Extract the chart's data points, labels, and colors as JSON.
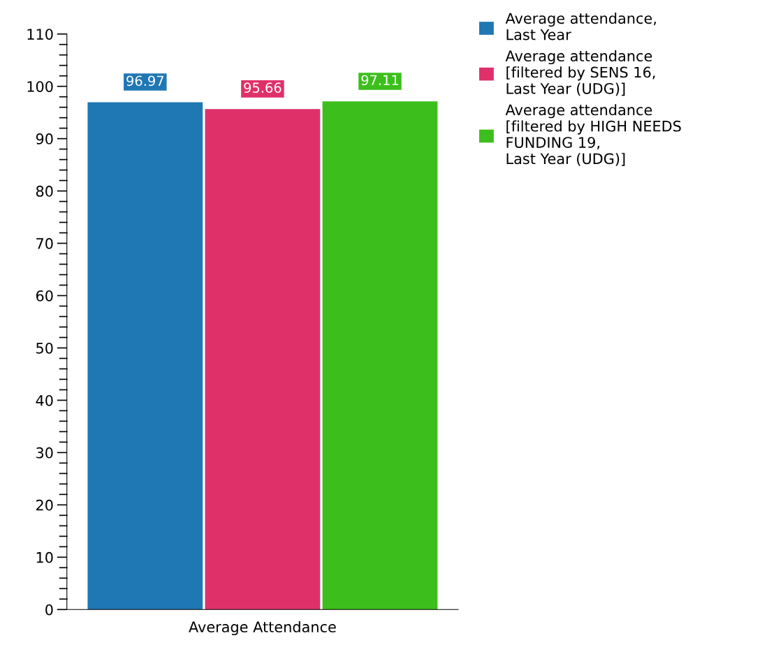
{
  "chart_data": {
    "type": "bar",
    "categories": [
      "Average Attendance"
    ],
    "series": [
      {
        "name": "Average attendance,\nLast Year",
        "color": "#1f77b4",
        "values": [
          96.97
        ]
      },
      {
        "name": "Average attendance\n[filtered by SENS 16,\nLast Year (UDG)]",
        "color": "#e0306a",
        "values": [
          95.66
        ]
      },
      {
        "name": "Average attendance\n[filtered by HIGH NEEDS\nFUNDING 19,\nLast Year (UDG)]",
        "color": "#3cbf1c",
        "values": [
          97.11
        ]
      }
    ],
    "ylim": [
      0,
      110
    ],
    "yticks": [
      0,
      10,
      20,
      30,
      40,
      50,
      60,
      70,
      80,
      90,
      100,
      110
    ],
    "data_labels": true,
    "grid": false,
    "legend": "top right"
  }
}
